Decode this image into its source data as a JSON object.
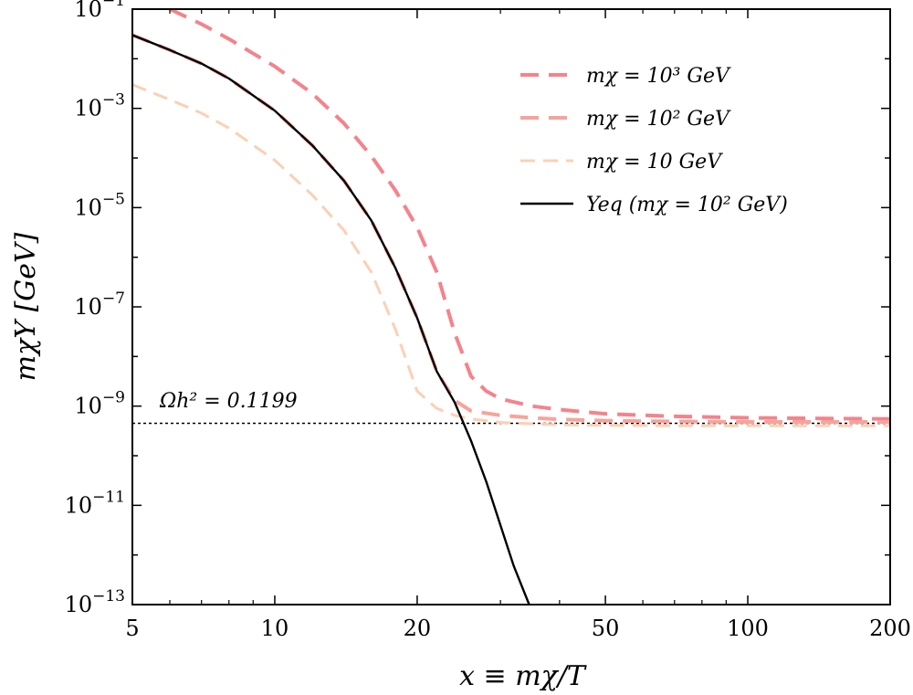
{
  "chart_data": {
    "type": "line",
    "xlabel": "x ≡ mχ/T",
    "ylabel": "mχY [GeV]",
    "xscale": "log",
    "yscale": "log",
    "xlim": [
      5,
      200
    ],
    "ylim": [
      1e-13,
      0.1
    ],
    "xticks": [
      {
        "value": 5,
        "label": "5"
      },
      {
        "value": 10,
        "label": "10"
      },
      {
        "value": 20,
        "label": "20"
      },
      {
        "value": 50,
        "label": "50"
      },
      {
        "value": 100,
        "label": "100"
      },
      {
        "value": 200,
        "label": "200"
      }
    ],
    "yticks": [
      {
        "value": 1e-13,
        "base": "10",
        "exp": "−13"
      },
      {
        "value": 1e-11,
        "base": "10",
        "exp": "−11"
      },
      {
        "value": 1e-09,
        "base": "10",
        "exp": "−9"
      },
      {
        "value": 1e-07,
        "base": "10",
        "exp": "−7"
      },
      {
        "value": 1e-05,
        "base": "10",
        "exp": "−5"
      },
      {
        "value": 0.001,
        "base": "10",
        "exp": "−3"
      },
      {
        "value": 0.1,
        "base": "10",
        "exp": "−1"
      }
    ],
    "grid": false,
    "legend_position": "top-right",
    "series": [
      {
        "name": "mχ = 10³ GeV",
        "color": "#f4838c",
        "style": "dashed",
        "x": [
          6,
          7,
          8,
          10,
          12,
          14,
          16,
          18,
          20,
          22,
          24,
          26,
          28,
          30,
          35,
          40,
          50,
          70,
          100,
          150,
          200
        ],
        "y": [
          0.1,
          0.05,
          0.025,
          0.007,
          0.002,
          0.0005,
          0.00011,
          2.2e-05,
          4e-06,
          5e-07,
          3e-08,
          4e-09,
          2e-09,
          1.4e-09,
          1e-09,
          8.5e-10,
          7e-10,
          6.2e-10,
          5.8e-10,
          5.6e-10,
          5.5e-10
        ]
      },
      {
        "name": "mχ = 10² GeV",
        "color": "#f7a39b",
        "style": "dashed",
        "x": [
          5,
          6,
          7,
          8,
          10,
          12,
          14,
          16,
          18,
          20,
          22,
          24,
          26,
          30,
          35,
          40,
          50,
          70,
          100,
          150,
          200
        ],
        "y": [
          0.03,
          0.015,
          0.008,
          0.004,
          0.0009,
          0.00018,
          3.5e-05,
          5.5e-06,
          6e-07,
          6e-08,
          5e-09,
          1.3e-09,
          8e-10,
          6.5e-10,
          5.8e-10,
          5.4e-10,
          5.1e-10,
          4.9e-10,
          4.8e-10,
          4.8e-10,
          4.8e-10
        ]
      },
      {
        "name": "mχ = 10 GeV",
        "color": "#fcd0b4",
        "style": "dashed",
        "x": [
          5,
          6,
          7,
          8,
          10,
          12,
          14,
          16,
          18,
          20,
          22,
          24,
          26,
          30,
          35,
          40,
          50,
          70,
          100,
          150,
          200
        ],
        "y": [
          0.003,
          0.0015,
          0.0008,
          0.0004,
          9e-05,
          1.8e-05,
          3.5e-06,
          5e-07,
          3.5e-08,
          2e-09,
          9e-10,
          6.5e-10,
          5.5e-10,
          4.7e-10,
          4.4e-10,
          4.2e-10,
          4.1e-10,
          4e-10,
          4e-10,
          4e-10,
          4e-10
        ]
      },
      {
        "name": "Yeq (mχ = 10² GeV)",
        "color": "#000000",
        "style": "solid",
        "x": [
          5,
          6,
          7,
          8,
          10,
          12,
          14,
          16,
          18,
          20,
          22,
          24,
          26,
          28,
          30,
          32,
          34.5
        ],
        "y": [
          0.03,
          0.015,
          0.008,
          0.004,
          0.0009,
          0.00018,
          3.5e-05,
          5.5e-06,
          6e-07,
          6e-08,
          5e-09,
          1.2e-09,
          2e-10,
          3e-11,
          4e-12,
          6e-13,
          1e-13
        ]
      }
    ],
    "reference_line": {
      "value": 4.5e-10,
      "style": "dotted",
      "label": "Ωh² = 0.1199"
    }
  }
}
